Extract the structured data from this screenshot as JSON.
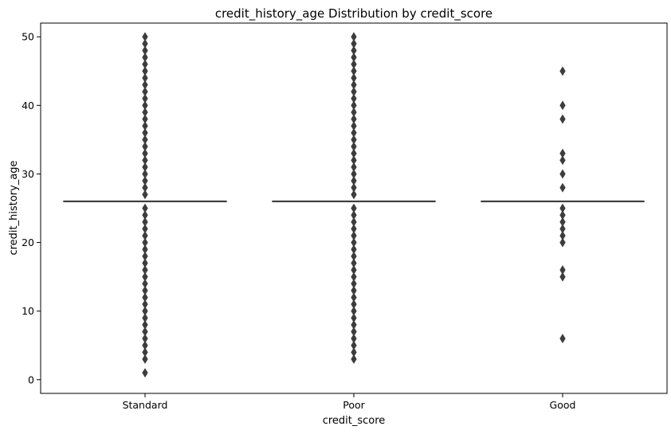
{
  "chart_data": {
    "type": "box",
    "title": "credit_history_age Distribution by credit_score",
    "xlabel": "credit_score",
    "ylabel": "credit_history_age",
    "categories": [
      "Standard",
      "Poor",
      "Good"
    ],
    "yticks": [
      0,
      10,
      20,
      30,
      40,
      50
    ],
    "ylim": [
      -2,
      52
    ],
    "grid": false,
    "legend": "none",
    "colors": {
      "box": "#3d3d3d",
      "axes": "#000000",
      "background": "#ffffff"
    },
    "series": [
      {
        "category": "Standard",
        "median": 26,
        "q1": 26,
        "q3": 26,
        "outliers": [
          1,
          3,
          4,
          5,
          6,
          7,
          8,
          9,
          10,
          11,
          12,
          13,
          14,
          15,
          16,
          17,
          18,
          19,
          20,
          21,
          22,
          23,
          24,
          25,
          27,
          28,
          29,
          30,
          31,
          32,
          33,
          34,
          35,
          36,
          37,
          38,
          39,
          40,
          41,
          42,
          43,
          44,
          45,
          46,
          47,
          48,
          49,
          50
        ]
      },
      {
        "category": "Poor",
        "median": 26,
        "q1": 26,
        "q3": 26,
        "outliers": [
          3,
          4,
          5,
          6,
          7,
          8,
          9,
          10,
          11,
          12,
          13,
          14,
          15,
          16,
          17,
          18,
          19,
          20,
          21,
          22,
          23,
          24,
          25,
          27,
          28,
          29,
          30,
          31,
          32,
          33,
          34,
          35,
          36,
          37,
          38,
          39,
          40,
          41,
          42,
          43,
          44,
          45,
          46,
          47,
          48,
          49,
          50
        ]
      },
      {
        "category": "Good",
        "median": 26,
        "q1": 26,
        "q3": 26,
        "outliers": [
          6,
          15,
          16,
          20,
          21,
          22,
          23,
          24,
          25,
          28,
          30,
          32,
          33,
          38,
          40,
          45
        ]
      }
    ]
  }
}
